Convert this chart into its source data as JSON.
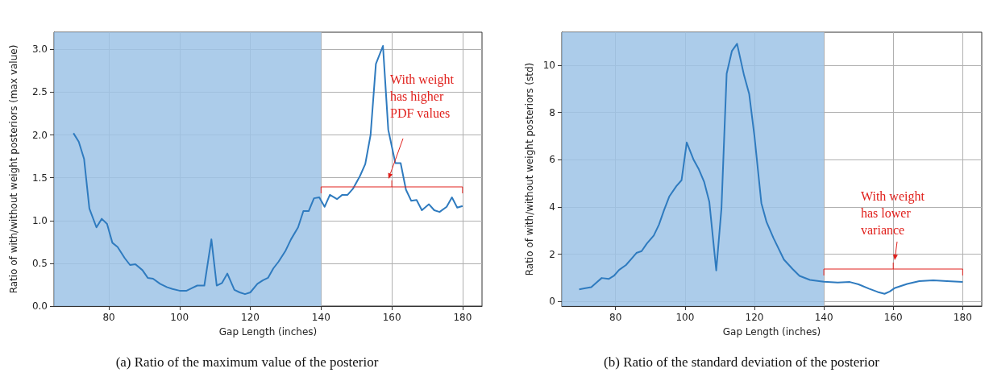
{
  "chart_data": [
    {
      "type": "line",
      "title": "(a) Ratio of the maximum value of the posterior",
      "xlabel": "Gap Length (inches)",
      "ylabel": "Ratio of with/without weight posteriors (max value)",
      "x": [
        70,
        71.5,
        73,
        74.5,
        76.5,
        78,
        79.5,
        81,
        82.5,
        84.5,
        86,
        87.5,
        89.5,
        91,
        92.5,
        94.5,
        96.5,
        98,
        100,
        102,
        103.5,
        105,
        107,
        109,
        110.5,
        112,
        113.5,
        115.5,
        117,
        118.5,
        120,
        122,
        123.5,
        125,
        126.5,
        128,
        130,
        131.5,
        133.5,
        135,
        136.5,
        138,
        139.5,
        141,
        142.5,
        144.5,
        146,
        147.5,
        149,
        151,
        152.5,
        154,
        155.5,
        157.5,
        159,
        161,
        162.5,
        164,
        165.5,
        167,
        168.5,
        170.5,
        172,
        173.5,
        175.5,
        177,
        178.5,
        180
      ],
      "series": [
        {
          "color": "#2f7bbf",
          "values": [
            2.02,
            1.92,
            1.72,
            1.14,
            0.92,
            1.02,
            0.96,
            0.74,
            0.69,
            0.56,
            0.48,
            0.49,
            0.42,
            0.33,
            0.32,
            0.26,
            0.22,
            0.2,
            0.18,
            0.18,
            0.21,
            0.24,
            0.24,
            0.78,
            0.24,
            0.27,
            0.38,
            0.19,
            0.16,
            0.14,
            0.16,
            0.26,
            0.3,
            0.33,
            0.44,
            0.52,
            0.65,
            0.78,
            0.92,
            1.11,
            1.11,
            1.26,
            1.27,
            1.16,
            1.3,
            1.25,
            1.3,
            1.3,
            1.37,
            1.52,
            1.66,
            2.0,
            2.83,
            3.04,
            2.06,
            1.67,
            1.67,
            1.36,
            1.23,
            1.24,
            1.12,
            1.19,
            1.12,
            1.1,
            1.16,
            1.27,
            1.15,
            1.17
          ]
        }
      ],
      "xlim": [
        64.5,
        185.5
      ],
      "xticks": [
        80,
        100,
        120,
        140,
        160,
        180
      ],
      "ylim": [
        0,
        3.2
      ],
      "yticks": [
        {
          "value": 0,
          "label": "0.0"
        },
        {
          "value": 0.5,
          "label": "0.5"
        },
        {
          "value": 1,
          "label": "1.0"
        },
        {
          "value": 1.5,
          "label": "1.5"
        },
        {
          "value": 2,
          "label": "2.0"
        },
        {
          "value": 2.5,
          "label": "2.5"
        },
        {
          "value": 3,
          "label": "3.0"
        }
      ],
      "bands": [
        {
          "axis": "x",
          "from": 64.5,
          "to": 140,
          "color": "#9dc3e6"
        }
      ],
      "annotations": [
        "With weight\nhas higher\nPDF values"
      ],
      "grid": true,
      "marker": "none",
      "line_style": "solid"
    },
    {
      "type": "line",
      "title": "(b) Ratio of the standard deviation of the posterior",
      "xlabel": "Gap Length (inches)",
      "ylabel": "Ratio of with/without weight posteriors (std)",
      "x": [
        69.5,
        71,
        73,
        74.5,
        76,
        78,
        79.5,
        81,
        83,
        84.5,
        86,
        87.5,
        89,
        91,
        92.5,
        94,
        95.5,
        97.5,
        99,
        100.5,
        102.5,
        104,
        105.5,
        107,
        109,
        110.5,
        112,
        113.5,
        115,
        117,
        118.5,
        120,
        122,
        123.5,
        125.5,
        128.5,
        131,
        133,
        136,
        140,
        144,
        147.5,
        150,
        153,
        155.5,
        157.5,
        159,
        160.5,
        164,
        167.5,
        171.5,
        175.5,
        180
      ],
      "series": [
        {
          "color": "#2f7bbf",
          "values": [
            0.51,
            0.55,
            0.6,
            0.8,
            0.99,
            0.95,
            1.08,
            1.33,
            1.54,
            1.79,
            2.05,
            2.13,
            2.45,
            2.79,
            3.25,
            3.88,
            4.45,
            4.88,
            5.13,
            6.73,
            5.99,
            5.59,
            5.07,
            4.22,
            1.31,
            3.93,
            9.64,
            10.6,
            10.91,
            9.58,
            8.78,
            7.01,
            4.16,
            3.36,
            2.68,
            1.77,
            1.37,
            1.08,
            0.91,
            0.83,
            0.8,
            0.82,
            0.72,
            0.54,
            0.4,
            0.32,
            0.42,
            0.57,
            0.74,
            0.86,
            0.89,
            0.86,
            0.82
          ]
        }
      ],
      "xlim": [
        64.5,
        185.5
      ],
      "xticks": [
        80,
        100,
        120,
        140,
        160,
        180
      ],
      "ylim": [
        -0.2,
        11.4
      ],
      "yticks": [
        0,
        2,
        4,
        6,
        8,
        10
      ],
      "bands": [
        {
          "axis": "x",
          "from": 64.5,
          "to": 140,
          "color": "#9dc3e6"
        }
      ],
      "annotations": [
        "With weight\nhas lower\nvariance"
      ],
      "grid": true,
      "marker": "none",
      "line_style": "solid"
    }
  ]
}
